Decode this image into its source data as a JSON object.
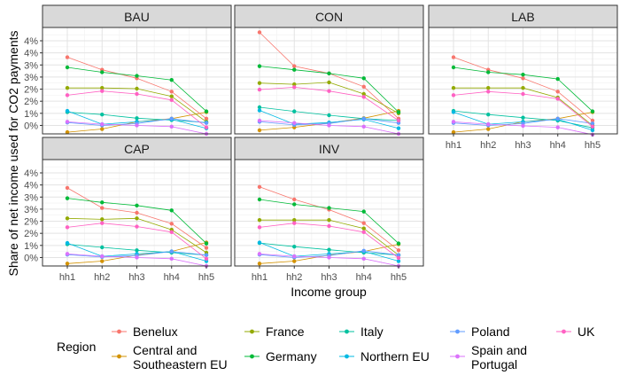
{
  "chart_data": {
    "type": "line",
    "xlabel": "Income group",
    "ylabel": "Share of net income used for CO2 payments",
    "categories": [
      "hh1",
      "hh2",
      "hh3",
      "hh4",
      "hh5"
    ],
    "y_ticks": [
      "0%",
      "1%",
      "2%",
      "2%",
      "3%",
      "3%",
      "4%",
      "4%"
    ],
    "ylim": [
      -0.35,
      4.05
    ],
    "grid": true,
    "legend": {
      "title": "Region",
      "placement": "bottom",
      "entries": [
        "Benelux",
        "Central and\nSoutheastern EU",
        "France",
        "Germany",
        "Italy",
        "Northern EU",
        "Poland",
        "Spain and\nPortugal",
        "UK"
      ]
    },
    "series_colors": {
      "Benelux": "#F8766D",
      "Central and Southeastern EU": "#D39200",
      "France": "#93AA00",
      "Germany": "#00BA38",
      "Italy": "#00C19F",
      "Northern EU": "#00B9E3",
      "Poland": "#619CFF",
      "Spain and Portugal": "#DB72FB",
      "UK": "#FF61C3"
    },
    "panels": [
      {
        "title": "BAU",
        "series": [
          {
            "name": "Benelux",
            "values": [
              2.82,
              2.3,
              1.95,
              1.4,
              0.28
            ]
          },
          {
            "name": "Central and Southeastern EU",
            "values": [
              -0.28,
              -0.15,
              0.15,
              0.28,
              0.55
            ]
          },
          {
            "name": "France",
            "values": [
              1.55,
              1.55,
              1.52,
              1.2,
              0.15
            ]
          },
          {
            "name": "Germany",
            "values": [
              2.4,
              2.2,
              2.05,
              1.88,
              0.58
            ]
          },
          {
            "name": "Italy",
            "values": [
              0.55,
              0.45,
              0.3,
              0.22,
              0.12
            ]
          },
          {
            "name": "Northern EU",
            "values": [
              0.6,
              0.05,
              0.15,
              0.25,
              -0.12
            ]
          },
          {
            "name": "Poland",
            "values": [
              0.12,
              0.0,
              0.08,
              0.28,
              0.1
            ]
          },
          {
            "name": "Spain and Portugal",
            "values": [
              0.15,
              0.05,
              0.0,
              -0.05,
              -0.35
            ]
          },
          {
            "name": "UK",
            "values": [
              1.25,
              1.42,
              1.3,
              1.05,
              -0.08
            ]
          }
        ]
      },
      {
        "title": "CON",
        "series": [
          {
            "name": "Benelux",
            "values": [
              3.85,
              2.45,
              2.15,
              1.6,
              0.28
            ]
          },
          {
            "name": "Central and Southeastern EU",
            "values": [
              -0.2,
              -0.08,
              0.1,
              0.3,
              0.6
            ]
          },
          {
            "name": "France",
            "values": [
              1.75,
              1.7,
              1.78,
              1.3,
              0.5
            ]
          },
          {
            "name": "Germany",
            "values": [
              2.45,
              2.3,
              2.15,
              1.95,
              0.55
            ]
          },
          {
            "name": "Italy",
            "values": [
              0.75,
              0.58,
              0.42,
              0.28,
              0.2
            ]
          },
          {
            "name": "Northern EU",
            "values": [
              0.62,
              0.05,
              0.12,
              0.25,
              -0.12
            ]
          },
          {
            "name": "Poland",
            "values": [
              0.15,
              0.02,
              0.08,
              0.28,
              0.1
            ]
          },
          {
            "name": "Spain and Portugal",
            "values": [
              0.2,
              0.1,
              0.0,
              -0.05,
              -0.35
            ]
          },
          {
            "name": "UK",
            "values": [
              1.48,
              1.58,
              1.42,
              1.18,
              0.2
            ]
          }
        ]
      },
      {
        "title": "LAB",
        "series": [
          {
            "name": "Benelux",
            "values": [
              2.82,
              2.3,
              1.95,
              1.4,
              0.2
            ]
          },
          {
            "name": "Central and Southeastern EU",
            "values": [
              -0.28,
              -0.15,
              0.15,
              0.28,
              0.55
            ]
          },
          {
            "name": "France",
            "values": [
              1.55,
              1.55,
              1.55,
              1.15,
              0.0
            ]
          },
          {
            "name": "Germany",
            "values": [
              2.4,
              2.2,
              2.1,
              1.92,
              0.58
            ]
          },
          {
            "name": "Italy",
            "values": [
              0.6,
              0.45,
              0.32,
              0.2,
              -0.1
            ]
          },
          {
            "name": "Northern EU",
            "values": [
              0.55,
              0.05,
              0.15,
              0.25,
              -0.2
            ]
          },
          {
            "name": "Poland",
            "values": [
              0.1,
              0.0,
              0.08,
              0.28,
              0.08
            ]
          },
          {
            "name": "Spain and Portugal",
            "values": [
              0.15,
              0.05,
              -0.02,
              -0.08,
              -0.38
            ]
          },
          {
            "name": "UK",
            "values": [
              1.25,
              1.4,
              1.3,
              1.1,
              -0.05
            ]
          }
        ]
      },
      {
        "title": "CAP",
        "series": [
          {
            "name": "Benelux",
            "values": [
              2.88,
              2.05,
              1.85,
              1.4,
              0.4
            ]
          },
          {
            "name": "Central and Southeastern EU",
            "values": [
              -0.25,
              -0.15,
              0.1,
              0.25,
              0.62
            ]
          },
          {
            "name": "France",
            "values": [
              1.62,
              1.58,
              1.62,
              1.15,
              0.2
            ]
          },
          {
            "name": "Germany",
            "values": [
              2.45,
              2.28,
              2.15,
              1.95,
              0.58
            ]
          },
          {
            "name": "Italy",
            "values": [
              0.55,
              0.42,
              0.3,
              0.2,
              0.1
            ]
          },
          {
            "name": "Northern EU",
            "values": [
              0.6,
              0.05,
              0.15,
              0.25,
              -0.15
            ]
          },
          {
            "name": "Poland",
            "values": [
              0.12,
              0.02,
              0.08,
              0.25,
              0.1
            ]
          },
          {
            "name": "Spain and Portugal",
            "values": [
              0.15,
              0.05,
              0.0,
              -0.05,
              -0.35
            ]
          },
          {
            "name": "UK",
            "values": [
              1.25,
              1.42,
              1.28,
              1.05,
              -0.05
            ]
          }
        ]
      },
      {
        "title": "INV",
        "series": [
          {
            "name": "Benelux",
            "values": [
              2.92,
              2.4,
              1.98,
              1.42,
              0.3
            ]
          },
          {
            "name": "Central and Southeastern EU",
            "values": [
              -0.25,
              -0.15,
              0.1,
              0.25,
              0.55
            ]
          },
          {
            "name": "France",
            "values": [
              1.55,
              1.55,
              1.55,
              1.2,
              0.1
            ]
          },
          {
            "name": "Germany",
            "values": [
              2.4,
              2.2,
              2.05,
              1.9,
              0.58
            ]
          },
          {
            "name": "Italy",
            "values": [
              0.6,
              0.45,
              0.32,
              0.2,
              0.1
            ]
          },
          {
            "name": "Northern EU",
            "values": [
              0.62,
              0.05,
              0.15,
              0.25,
              -0.15
            ]
          },
          {
            "name": "Poland",
            "values": [
              0.12,
              0.0,
              0.08,
              0.28,
              0.1
            ]
          },
          {
            "name": "Spain and Portugal",
            "values": [
              0.15,
              0.05,
              0.0,
              -0.05,
              -0.35
            ]
          },
          {
            "name": "UK",
            "values": [
              1.25,
              1.42,
              1.3,
              1.05,
              -0.02
            ]
          }
        ]
      }
    ]
  }
}
